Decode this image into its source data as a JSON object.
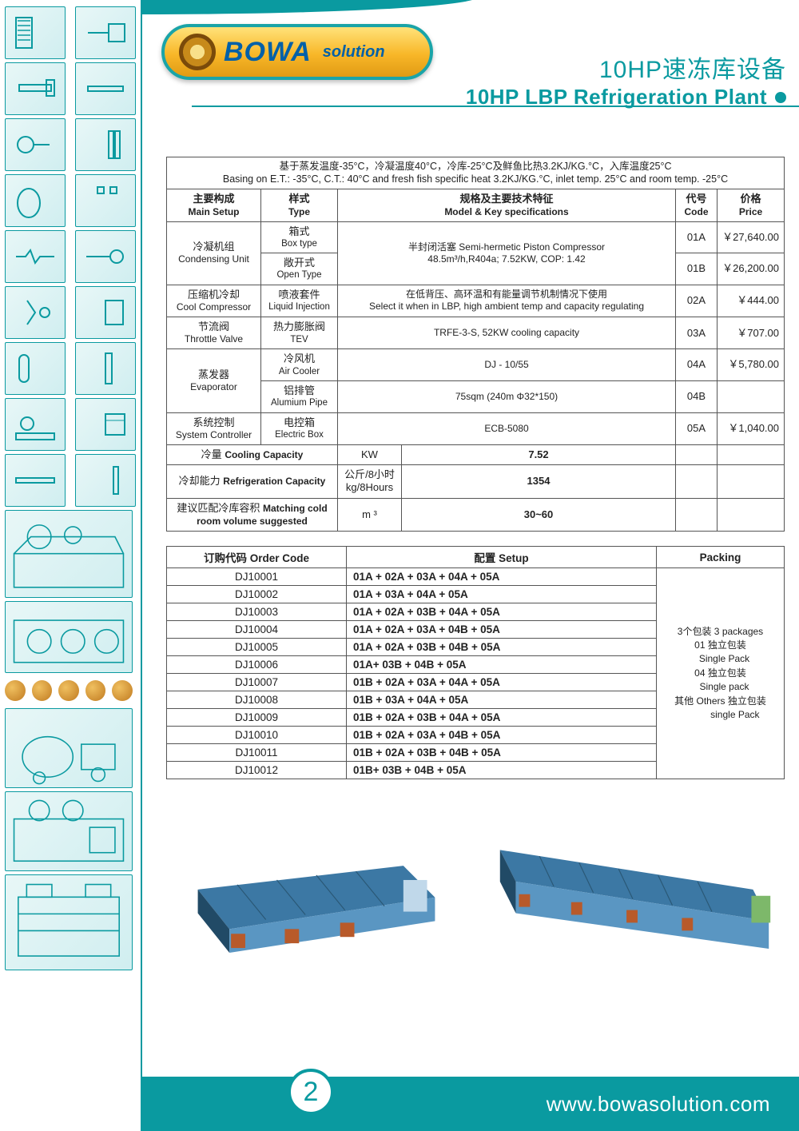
{
  "brand": {
    "name": "BOWA",
    "sub": "solution"
  },
  "title": {
    "cn": "10HP速冻库设备",
    "en": "10HP LBP Refrigeration Plant"
  },
  "basis": {
    "cn": "基于蒸发温度-35°C，冷凝温度40°C，冷库-25°C及鲜鱼比热3.2KJ/KG.°C，入库温度25°C",
    "en": "Basing on E.T.: -35°C, C.T.: 40°C and fresh fish specific heat 3.2KJ/KG.°C, inlet temp. 25°C and room temp. -25°C"
  },
  "specHeaders": {
    "mainSetup": {
      "cn": "主要构成",
      "en": "Main Setup"
    },
    "type": {
      "cn": "样式",
      "en": "Type"
    },
    "spec": {
      "cn": "规格及主要技术特征",
      "en": "Model & Key specifications"
    },
    "code": {
      "cn": "代号",
      "en": "Code"
    },
    "price": {
      "cn": "价格",
      "en": "Price"
    }
  },
  "specRows": [
    {
      "group": {
        "cn": "冷凝机组",
        "en": "Condensing Unit"
      },
      "type": {
        "cn": "箱式",
        "en": "Box type"
      },
      "spec": {
        "cn": "半封闭活塞 Semi-hermetic Piston Compressor",
        "en": "48.5m³/h,R404a; 7.52KW, COP: 1.42"
      },
      "code": "01A",
      "price": "￥27,640.00",
      "typeRowspan": 1,
      "groupRowspan": 2,
      "specRowspan": 2
    },
    {
      "type": {
        "cn": "敞开式",
        "en": "Open Type"
      },
      "code": "01B",
      "price": "￥26,200.00"
    },
    {
      "group": {
        "cn": "压缩机冷却",
        "en": "Cool Compressor"
      },
      "type": {
        "cn": "喷液套件",
        "en": "Liquid Injection"
      },
      "spec": {
        "cn": "在低背压、高环温和有能量调节机制情况下使用",
        "en": "Select it when in LBP, high ambient temp and capacity regulating"
      },
      "code": "02A",
      "price": "￥444.00",
      "groupRowspan": 1,
      "specRowspan": 1
    },
    {
      "group": {
        "cn": "节流阀",
        "en": "Throttle Valve"
      },
      "type": {
        "cn": "热力膨胀阀",
        "en": "TEV"
      },
      "spec": {
        "cn": "",
        "en": "TRFE-3-S, 52KW cooling capacity"
      },
      "code": "03A",
      "price": "￥707.00",
      "groupRowspan": 1,
      "specRowspan": 1
    },
    {
      "group": {
        "cn": "蒸发器",
        "en": "Evaporator"
      },
      "type": {
        "cn": "冷风机",
        "en": "Air Cooler"
      },
      "spec": {
        "cn": "",
        "en": "DJ - 10/55"
      },
      "code": "04A",
      "price": "￥5,780.00",
      "groupRowspan": 2,
      "specRowspan": 1
    },
    {
      "type": {
        "cn": "铝排管",
        "en": "Alumium Pipe"
      },
      "spec": {
        "cn": "",
        "en": "75sqm (240m Φ32*150)"
      },
      "code": "04B",
      "price": ""
    },
    {
      "group": {
        "cn": "系统控制",
        "en": "System Controller"
      },
      "type": {
        "cn": "电控箱",
        "en": "Electric Box"
      },
      "spec": {
        "cn": "",
        "en": "ECB-5080"
      },
      "code": "05A",
      "price": "￥1,040.00",
      "groupRowspan": 1,
      "specRowspan": 1
    }
  ],
  "summary": [
    {
      "label": {
        "cn": "冷量",
        "en": "Cooling Capacity"
      },
      "unit": "KW",
      "value": "7.52"
    },
    {
      "label": {
        "cn": "冷却能力",
        "en": "Refrigeration Capacity"
      },
      "unit": "公斤/8小时\nkg/8Hours",
      "value": "1354"
    },
    {
      "label": {
        "cn": "建议匹配冷库容积",
        "en": "Matching cold room volume suggested"
      },
      "unit": "m ³",
      "value": "30~60"
    }
  ],
  "orderHeaders": {
    "code": {
      "cn": "订购代码",
      "en": "Order Code"
    },
    "setup": "配置 Setup",
    "pack": "Packing"
  },
  "orders": [
    {
      "code": "DJ10001",
      "setup": "01A + 02A + 03A + 04A + 05A"
    },
    {
      "code": "DJ10002",
      "setup": "01A + 03A + 04A + 05A"
    },
    {
      "code": "DJ10003",
      "setup": "01A + 02A + 03B + 04A + 05A"
    },
    {
      "code": "DJ10004",
      "setup": "01A + 02A + 03A + 04B + 05A"
    },
    {
      "code": "DJ10005",
      "setup": "01A + 02A + 03B + 04B + 05A"
    },
    {
      "code": "DJ10006",
      "setup": "01A+ 03B + 04B + 05A"
    },
    {
      "code": "DJ10007",
      "setup": "01B + 02A + 03A + 04A + 05A"
    },
    {
      "code": "DJ10008",
      "setup": "01B + 03A + 04A + 05A"
    },
    {
      "code": "DJ10009",
      "setup": "01B + 02A + 03B + 04A + 05A"
    },
    {
      "code": "DJ10010",
      "setup": "01B + 02A + 03A + 04B + 05A"
    },
    {
      "code": "DJ10011",
      "setup": "01B + 02A + 03B + 04B + 05A"
    },
    {
      "code": "DJ10012",
      "setup": "01B+ 03B + 04B + 05A"
    }
  ],
  "packing": [
    "3个包装 3 packages",
    "01 独立包装",
    "   Single Pack",
    "04 独立包装",
    "   Single pack",
    "其他 Others 独立包装",
    "           single Pack"
  ],
  "footer": {
    "url": "www.bowasolution.com"
  },
  "pageNumber": "2",
  "colors": {
    "teal": "#0a9aa0",
    "renderBlue": "#5a96c2",
    "renderTop": "#3c78a4",
    "renderShadow": "#214a66"
  }
}
